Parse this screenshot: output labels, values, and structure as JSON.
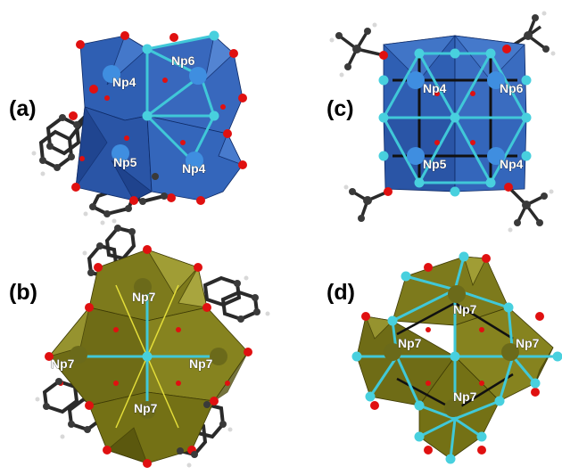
{
  "colors": {
    "blue_face": "#2f5fb3",
    "blue_face_dark": "#1d3f88",
    "blue_face_light": "#4a7fd0",
    "olive_face": "#7d7a1c",
    "olive_face_dark": "#55520d",
    "olive_face_light": "#a7a43a",
    "oxygen": "#e01010",
    "cyan_atom": "#48d0de",
    "cyan_bond": "#40c8d8",
    "carbon": "#3a3a3a",
    "hydrogen": "#d8d8d8",
    "np_blue": "#3f8ee0",
    "np_olive": "#6b6a1a"
  },
  "panels": [
    {
      "id": "a",
      "label": "(a)",
      "atoms": [
        {
          "label": "Np4"
        },
        {
          "label": "Np6"
        },
        {
          "label": "Np5"
        },
        {
          "label": "Np4"
        }
      ]
    },
    {
      "id": "b",
      "label": "(b)",
      "atoms": [
        {
          "label": "Np7"
        },
        {
          "label": "Np7"
        },
        {
          "label": "Np7"
        },
        {
          "label": "Np7"
        }
      ]
    },
    {
      "id": "c",
      "label": "(c)",
      "atoms": [
        {
          "label": "Np4"
        },
        {
          "label": "Np6"
        },
        {
          "label": "Np5"
        },
        {
          "label": "Np4"
        }
      ]
    },
    {
      "id": "d",
      "label": "(d)",
      "atoms": [
        {
          "label": "Np7"
        },
        {
          "label": "Np7"
        },
        {
          "label": "Np7"
        },
        {
          "label": "Np7"
        }
      ]
    }
  ]
}
